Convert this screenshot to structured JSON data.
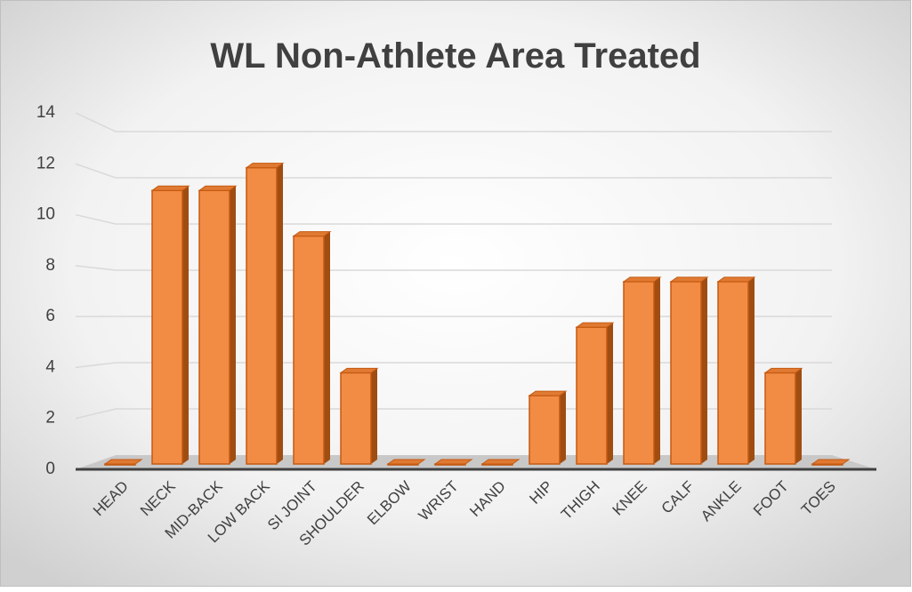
{
  "chart_data": {
    "type": "bar3d",
    "title": "WL Non-Athlete Area Treated",
    "categories": [
      "HEAD",
      "NECK",
      "MID-BACK",
      "LOW BACK",
      "SI JOINT",
      "SHOULDER",
      "ELBOW",
      "WRIST",
      "HAND",
      "HIP",
      "THIGH",
      "KNEE",
      "CALF",
      "ANKLE",
      "FOOT",
      "TOES"
    ],
    "values": [
      0,
      12,
      12,
      13,
      10,
      4,
      0,
      0,
      0,
      3,
      6,
      8,
      8,
      8,
      4,
      0
    ],
    "color": "#f28c45",
    "ylim": [
      0,
      14
    ],
    "yticks": [
      0,
      2,
      4,
      6,
      8,
      10,
      12,
      14
    ],
    "grid": true
  }
}
